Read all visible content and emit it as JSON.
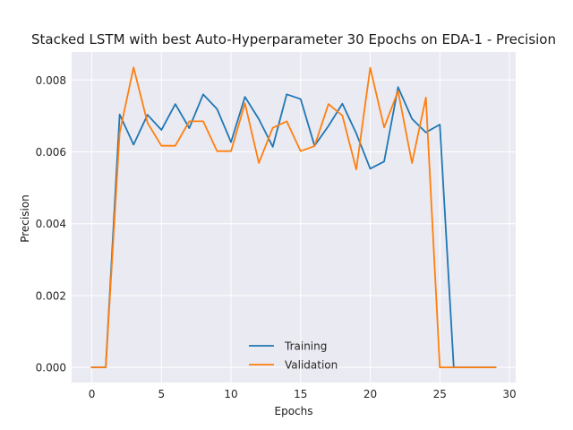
{
  "chart_data": {
    "type": "line",
    "title": "Stacked LSTM with best Auto-Hyperparameter 30 Epochs on EDA-1 - Precision",
    "xlabel": "Epochs",
    "ylabel": "Precision",
    "xlim": [
      -1.45,
      30.45
    ],
    "ylim": [
      -0.00042,
      0.00878
    ],
    "xticks": [
      0,
      5,
      10,
      15,
      20,
      25,
      30
    ],
    "xtick_labels": [
      "0",
      "5",
      "10",
      "15",
      "20",
      "25",
      "30"
    ],
    "yticks": [
      0.0,
      0.002,
      0.004,
      0.006,
      0.008
    ],
    "ytick_labels": [
      "0.000",
      "0.002",
      "0.004",
      "0.006",
      "0.008"
    ],
    "grid": true,
    "legend_position": "lower-center",
    "x": [
      0,
      1,
      2,
      3,
      4,
      5,
      6,
      7,
      8,
      9,
      10,
      11,
      12,
      13,
      14,
      15,
      16,
      17,
      18,
      19,
      20,
      21,
      22,
      23,
      24,
      25,
      26,
      27,
      28,
      29
    ],
    "series": [
      {
        "name": "Training",
        "color": "#1f77b4",
        "values": [
          0.0,
          0.0,
          0.00704,
          0.0062,
          0.00703,
          0.00661,
          0.00733,
          0.00666,
          0.0076,
          0.00719,
          0.00627,
          0.00753,
          0.00691,
          0.00614,
          0.0076,
          0.00747,
          0.00617,
          0.00672,
          0.00734,
          0.00651,
          0.00553,
          0.00573,
          0.0078,
          0.00692,
          0.00654,
          0.00676,
          0.0,
          0.0,
          0.0,
          0.0
        ]
      },
      {
        "name": "Validation",
        "color": "#ff7f0e",
        "values": [
          0.0,
          0.0,
          0.00653,
          0.00835,
          0.00681,
          0.00617,
          0.00617,
          0.00685,
          0.00685,
          0.00602,
          0.00602,
          0.00735,
          0.00569,
          0.00667,
          0.00685,
          0.00602,
          0.00616,
          0.00733,
          0.00701,
          0.00551,
          0.00834,
          0.00668,
          0.00769,
          0.00569,
          0.00751,
          0.0,
          0.0,
          0.0,
          0.0,
          0.0
        ]
      }
    ]
  }
}
